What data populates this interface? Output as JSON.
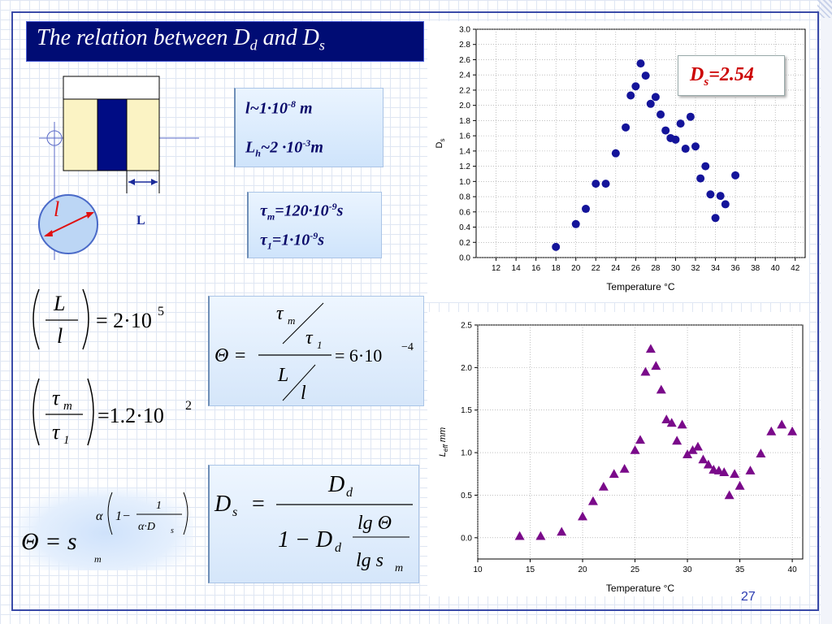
{
  "title": {
    "prefix": "The relation between D",
    "sub1": "d",
    "middle": " and D",
    "sub2": "s"
  },
  "diagram": {
    "l_label": "l",
    "L_label": "L"
  },
  "params_box": {
    "line1_text": "l~1·10",
    "line1_exp": "-8",
    "line1_unit": " m",
    "line2_text": "L",
    "line2_sub": "h",
    "line2_mid": "~2  ·10",
    "line2_exp": "-3",
    "line2_unit": "m"
  },
  "tau_box": {
    "line1_sym": "τ",
    "line1_sub": "m",
    "line1_val": "=120·10",
    "line1_exp": "-9",
    "line1_unit": "s",
    "line2_sym": "τ",
    "line2_sub": "1",
    "line2_val": "=1·10",
    "line2_exp": "-9",
    "line2_unit": "s"
  },
  "eq_L_over_l": {
    "num": "L",
    "den": "l",
    "rhs": "= 2·10",
    "exp": "5"
  },
  "eq_tau_ratio": {
    "num": "τ",
    "num_sub": "m",
    "den": "τ",
    "den_sub": "1",
    "rhs": "=1.2·10",
    "exp": "2"
  },
  "eq_theta_ratio": {
    "lhs": "Θ =",
    "top": "τ",
    "top_sub": "m",
    "top2": "τ",
    "top2_sub": "1",
    "bot": "L",
    "bot2": "l",
    "rhs": "= 6·10",
    "exp": "−4"
  },
  "eq_theta_power": {
    "lhs": "Θ = s",
    "base_sub": "m",
    "alpha": "α",
    "one_minus": "1−",
    "frac_num": "1",
    "frac_den": "α·D",
    "frac_den_sub": "s"
  },
  "eq_ds": {
    "lhs": "D",
    "lhs_sub": "s",
    "eq": "=",
    "num": "D",
    "num_sub": "d",
    "den_prefix": "1 − D",
    "den_sub": "d",
    "lg_num": "lg Θ",
    "lg_den": "lg s",
    "lg_den_sub": "m"
  },
  "ds_value": {
    "sym": "D",
    "sub": "s",
    "val": "=2.54"
  },
  "page_number": "27",
  "chart_data": [
    {
      "type": "scatter",
      "xlabel": "Temperature °C",
      "ylabel": "D",
      "ylabel_sub": "s",
      "xlim": [
        10,
        43
      ],
      "ylim": [
        0.0,
        3.0
      ],
      "xticks": [
        12,
        14,
        16,
        18,
        20,
        22,
        24,
        26,
        28,
        30,
        32,
        34,
        36,
        38,
        40,
        42
      ],
      "yticks": [
        0.0,
        0.2,
        0.4,
        0.6,
        0.8,
        1.0,
        1.2,
        1.4,
        1.6,
        1.8,
        2.0,
        2.2,
        2.4,
        2.6,
        2.8,
        3.0
      ],
      "grid": "dotted",
      "marker": "circle",
      "color": "#14149a",
      "x": [
        18.0,
        20.0,
        21.0,
        22.0,
        23.0,
        24.0,
        25.0,
        25.5,
        26.0,
        26.5,
        27.0,
        27.5,
        28.0,
        28.5,
        29.0,
        29.5,
        30.0,
        30.5,
        31.0,
        31.5,
        32.0,
        32.5,
        33.0,
        33.5,
        34.0,
        34.5,
        35.0,
        36.0
      ],
      "y": [
        0.14,
        0.44,
        0.64,
        0.97,
        0.97,
        1.37,
        1.71,
        2.13,
        2.25,
        2.55,
        2.39,
        2.02,
        2.11,
        1.88,
        1.67,
        1.57,
        1.55,
        1.76,
        1.43,
        1.85,
        1.46,
        1.04,
        1.2,
        0.83,
        0.52,
        0.81,
        0.7,
        1.08
      ]
    },
    {
      "type": "scatter",
      "xlabel": "Temperature °C",
      "ylabel": "L",
      "ylabel_sub": "eff",
      "ylabel_unit": " mm",
      "xlim": [
        10,
        41
      ],
      "ylim": [
        -0.25,
        2.5
      ],
      "xticks": [
        10,
        15,
        20,
        25,
        30,
        35,
        40
      ],
      "yticks": [
        0.0,
        0.5,
        1.0,
        1.5,
        2.0,
        2.5
      ],
      "grid": "dotted",
      "marker": "triangle",
      "color": "#7a0a8a",
      "x": [
        14.0,
        16.0,
        18.0,
        20.0,
        21.0,
        22.0,
        23.0,
        24.0,
        25.0,
        25.5,
        26.0,
        26.5,
        27.0,
        27.5,
        28.0,
        28.5,
        29.0,
        29.5,
        30.0,
        30.5,
        31.0,
        31.5,
        32.0,
        32.5,
        33.0,
        33.5,
        34.0,
        34.5,
        35.0,
        36.0,
        37.0,
        38.0,
        39.0,
        40.0
      ],
      "y": [
        0.02,
        0.02,
        0.07,
        0.25,
        0.43,
        0.6,
        0.75,
        0.81,
        1.03,
        1.15,
        1.95,
        2.22,
        2.02,
        1.74,
        1.39,
        1.35,
        1.14,
        1.33,
        0.98,
        1.03,
        1.07,
        0.92,
        0.86,
        0.8,
        0.79,
        0.77,
        0.5,
        0.75,
        0.61,
        0.79,
        0.99,
        1.25,
        1.33,
        1.25
      ]
    }
  ]
}
